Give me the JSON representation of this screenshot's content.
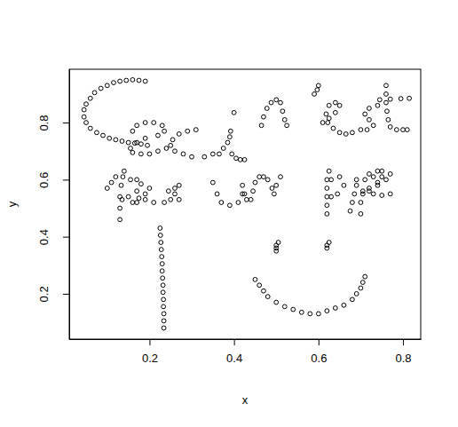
{
  "chart_data": {
    "type": "scatter",
    "x_label": "x",
    "y_label": "y",
    "color": "#000000",
    "marker": "open-circle",
    "xlim": [
      0.01,
      0.842
    ],
    "ylim": [
      0.041,
      0.987
    ],
    "xticks": [
      0.2,
      0.4,
      0.6,
      0.8
    ],
    "yticks": [
      0.2,
      0.4,
      0.6,
      0.8
    ],
    "x": [
      0.19,
      0.175,
      0.16,
      0.145,
      0.13,
      0.115,
      0.1,
      0.085,
      0.07,
      0.06,
      0.05,
      0.045,
      0.045,
      0.05,
      0.06,
      0.075,
      0.09,
      0.105,
      0.12,
      0.135,
      0.15,
      0.165,
      0.18,
      0.195,
      0.16,
      0.17,
      0.19,
      0.21,
      0.23,
      0.235,
      0.22,
      0.19,
      0.17,
      0.155,
      0.16,
      0.18,
      0.2,
      0.22,
      0.24,
      0.31,
      0.29,
      0.27,
      0.255,
      0.25,
      0.26,
      0.28,
      0.3,
      0.33,
      0.35,
      0.365,
      0.375,
      0.385,
      0.39,
      0.392,
      0.395,
      0.405,
      0.415,
      0.425,
      0.4,
      0.465,
      0.47,
      0.478,
      0.488,
      0.5,
      0.51,
      0.515,
      0.52,
      0.525,
      0.59,
      0.597,
      0.6,
      0.61,
      0.625,
      0.64,
      0.65,
      0.64,
      0.625,
      0.618,
      0.622,
      0.635,
      0.65,
      0.665,
      0.68,
      0.7,
      0.715,
      0.73,
      0.72,
      0.71,
      0.72,
      0.74,
      0.76,
      0.76,
      0.76,
      0.762,
      0.765,
      0.77,
      0.785,
      0.8,
      0.81,
      0.745,
      0.77,
      0.795,
      0.815,
      0.1,
      0.11,
      0.12,
      0.13,
      0.13,
      0.13,
      0.133,
      0.137,
      0.14,
      0.155,
      0.17,
      0.18,
      0.17,
      0.15,
      0.135,
      0.2,
      0.19,
      0.175,
      0.16,
      0.17,
      0.19,
      0.21,
      0.235,
      0.245,
      0.26,
      0.27,
      0.26,
      0.25,
      0.27,
      0.35,
      0.36,
      0.37,
      0.39,
      0.41,
      0.42,
      0.42,
      0.425,
      0.43,
      0.44,
      0.445,
      0.45,
      0.46,
      0.47,
      0.48,
      0.49,
      0.495,
      0.5,
      0.51,
      0.625,
      0.62,
      0.62,
      0.62,
      0.62,
      0.62,
      0.63,
      0.65,
      0.66,
      0.645,
      0.63,
      0.675,
      0.68,
      0.685,
      0.69,
      0.69,
      0.7,
      0.7,
      0.705,
      0.71,
      0.72,
      0.74,
      0.75,
      0.74,
      0.72,
      0.705,
      0.74,
      0.76,
      0.77,
      0.75,
      0.73,
      0.72,
      0.73,
      0.75,
      0.77,
      0.225,
      0.226,
      0.227,
      0.228,
      0.229,
      0.23,
      0.23,
      0.231,
      0.232,
      0.232,
      0.233,
      0.233,
      0.234,
      0.234,
      0.234,
      0.5,
      0.5,
      0.5,
      0.505,
      0.62,
      0.62,
      0.625,
      0.45,
      0.46,
      0.47,
      0.48,
      0.5,
      0.52,
      0.54,
      0.56,
      0.58,
      0.6,
      0.62,
      0.64,
      0.66,
      0.68,
      0.69,
      0.7,
      0.705,
      0.71
    ],
    "y": [
      0.945,
      0.948,
      0.95,
      0.948,
      0.945,
      0.94,
      0.93,
      0.92,
      0.905,
      0.885,
      0.865,
      0.845,
      0.82,
      0.8,
      0.78,
      0.765,
      0.755,
      0.745,
      0.74,
      0.735,
      0.73,
      0.728,
      0.725,
      0.72,
      0.77,
      0.79,
      0.8,
      0.8,
      0.79,
      0.77,
      0.755,
      0.745,
      0.73,
      0.71,
      0.695,
      0.69,
      0.69,
      0.7,
      0.71,
      0.775,
      0.77,
      0.76,
      0.74,
      0.72,
      0.7,
      0.69,
      0.68,
      0.68,
      0.69,
      0.69,
      0.71,
      0.73,
      0.75,
      0.77,
      0.69,
      0.675,
      0.67,
      0.67,
      0.835,
      0.79,
      0.82,
      0.85,
      0.87,
      0.88,
      0.87,
      0.84,
      0.81,
      0.79,
      0.9,
      0.915,
      0.93,
      0.8,
      0.815,
      0.835,
      0.86,
      0.87,
      0.86,
      0.83,
      0.8,
      0.78,
      0.765,
      0.76,
      0.765,
      0.775,
      0.775,
      0.79,
      0.81,
      0.83,
      0.85,
      0.86,
      0.93,
      0.9,
      0.87,
      0.84,
      0.81,
      0.785,
      0.775,
      0.775,
      0.775,
      0.88,
      0.882,
      0.884,
      0.885,
      0.57,
      0.59,
      0.61,
      0.46,
      0.5,
      0.54,
      0.58,
      0.61,
      0.63,
      0.6,
      0.6,
      0.585,
      0.56,
      0.54,
      0.53,
      0.57,
      0.55,
      0.535,
      0.52,
      0.52,
      0.53,
      0.52,
      0.52,
      0.56,
      0.57,
      0.58,
      0.55,
      0.53,
      0.53,
      0.59,
      0.55,
      0.52,
      0.51,
      0.52,
      0.55,
      0.58,
      0.55,
      0.53,
      0.53,
      0.56,
      0.59,
      0.61,
      0.61,
      0.6,
      0.57,
      0.55,
      0.58,
      0.61,
      0.63,
      0.6,
      0.57,
      0.54,
      0.51,
      0.48,
      0.6,
      0.61,
      0.58,
      0.55,
      0.54,
      0.49,
      0.52,
      0.55,
      0.58,
      0.6,
      0.48,
      0.52,
      0.56,
      0.6,
      0.62,
      0.63,
      0.61,
      0.58,
      0.56,
      0.55,
      0.59,
      0.6,
      0.62,
      0.63,
      0.61,
      0.57,
      0.55,
      0.545,
      0.55,
      0.43,
      0.405,
      0.38,
      0.355,
      0.33,
      0.305,
      0.28,
      0.255,
      0.23,
      0.205,
      0.18,
      0.155,
      0.13,
      0.105,
      0.08,
      0.35,
      0.36,
      0.37,
      0.38,
      0.36,
      0.37,
      0.38,
      0.25,
      0.23,
      0.21,
      0.19,
      0.17,
      0.155,
      0.145,
      0.135,
      0.13,
      0.13,
      0.14,
      0.15,
      0.16,
      0.18,
      0.2,
      0.22,
      0.24,
      0.26
    ]
  }
}
